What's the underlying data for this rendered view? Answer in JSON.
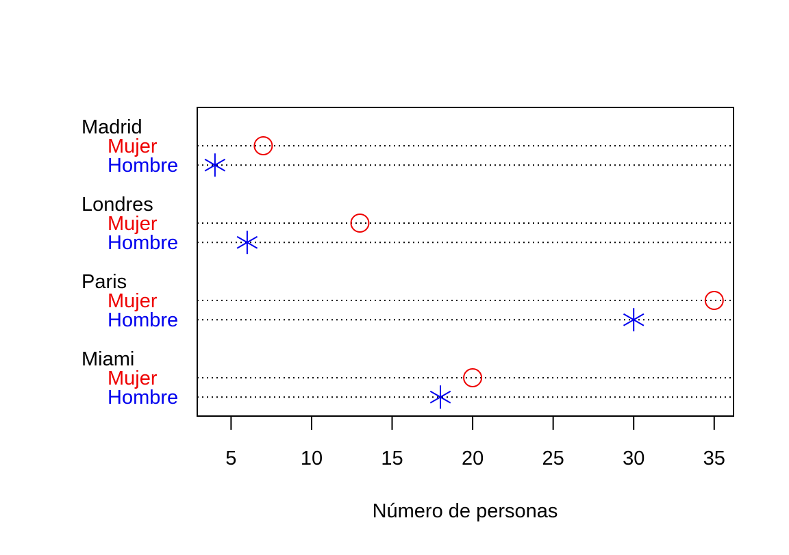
{
  "chart_data": {
    "type": "dotchart",
    "title": "",
    "xlabel": "Número de personas",
    "ylabel": "",
    "xlim": [
      2.9,
      36.2
    ],
    "x_ticks": [
      5,
      10,
      15,
      20,
      25,
      30,
      35
    ],
    "grid": "dotted horizontal lines per row",
    "groups": [
      {
        "label": "Madrid",
        "rows": [
          {
            "label": "Mujer",
            "value": 7
          },
          {
            "label": "Hombre",
            "value": 4
          }
        ]
      },
      {
        "label": "Londres",
        "rows": [
          {
            "label": "Mujer",
            "value": 13
          },
          {
            "label": "Hombre",
            "value": 6
          }
        ]
      },
      {
        "label": "Paris",
        "rows": [
          {
            "label": "Mujer",
            "value": 35
          },
          {
            "label": "Hombre",
            "value": 30
          }
        ]
      },
      {
        "label": "Miami",
        "rows": [
          {
            "label": "Mujer",
            "value": 20
          },
          {
            "label": "Hombre",
            "value": 18
          }
        ]
      }
    ],
    "series": [
      {
        "key": "Mujer",
        "color": "#ee0000",
        "marker": "open-circle"
      },
      {
        "key": "Hombre",
        "color": "#0000ee",
        "marker": "asterisk"
      }
    ],
    "group_label_color": "#000000"
  }
}
